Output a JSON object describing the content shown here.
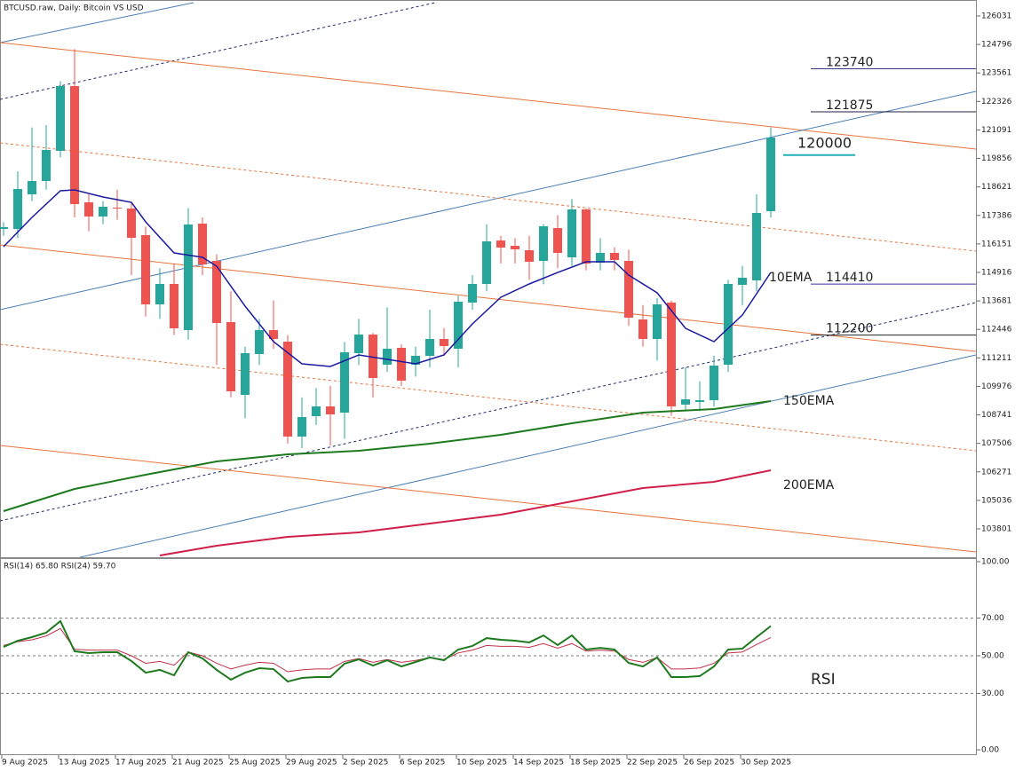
{
  "chart_data": [
    {
      "type": "candlestick",
      "title": "BTCUSD.raw, Daily:  Bitcoin VS USD",
      "categories": [
        "9 Aug 2025",
        null,
        null,
        null,
        "13 Aug 2025",
        null,
        null,
        null,
        "17 Aug 2025",
        null,
        null,
        null,
        "21 Aug 2025",
        null,
        null,
        null,
        "25 Aug 2025",
        null,
        null,
        null,
        "29 Aug 2025",
        null,
        null,
        null,
        "2 Sep 2025",
        null,
        null,
        null,
        "6 Sep 2025",
        null,
        null,
        null,
        "10 Sep 2025",
        null,
        null,
        null,
        "14 Sep 2025",
        null,
        null,
        null,
        "18 Sep 2025",
        null,
        null,
        null,
        "22 Sep 2025",
        null,
        null,
        null,
        "26 Sep 2025",
        null,
        null,
        null,
        "30 Sep 2025",
        null,
        null
      ],
      "series": [
        {
          "up_color": "#26a69a",
          "down_color": "#ef5350",
          "open": [
            116800,
            116800,
            118300,
            118877,
            120185,
            122992,
            117954,
            117339,
            117723,
            117685,
            116531,
            113531,
            114416,
            112416,
            117031,
            115416,
            112762,
            109608,
            111377,
            112416,
            111916,
            107801,
            108685,
            109108,
            108839,
            111416,
            112223,
            110916,
            111646,
            110916,
            111300,
            112031,
            111608,
            113608,
            114416,
            116300,
            116069,
            115877,
            115416,
            116839,
            115569,
            117646,
            115339,
            115762,
            115416,
            112877,
            112031,
            113608,
            109185,
            109300,
            109377,
            110916,
            114377,
            114570,
            117569
          ],
          "high": [
            117100,
            119300,
            121200,
            121300,
            123200,
            124600,
            118300,
            118000,
            118500,
            117900,
            116900,
            115100,
            115300,
            117700,
            117300,
            115700,
            114100,
            111700,
            112900,
            113700,
            112200,
            109500,
            109900,
            110000,
            111900,
            112900,
            112300,
            113400,
            111800,
            111700,
            113300,
            112500,
            113900,
            114800,
            117000,
            116500,
            116400,
            116500,
            117000,
            117400,
            118100,
            117700,
            116400,
            116000,
            115900,
            113500,
            113800,
            113700,
            110800,
            110200,
            111300,
            114600,
            115200,
            118300,
            121200
          ],
          "low": [
            116500,
            116400,
            118000,
            118500,
            119900,
            117300,
            116700,
            117000,
            117200,
            114800,
            113000,
            112900,
            112200,
            112000,
            114800,
            110900,
            109500,
            108600,
            110900,
            111600,
            107500,
            107300,
            108300,
            107400,
            107700,
            110900,
            109500,
            110600,
            110000,
            110400,
            110800,
            111300,
            110800,
            113300,
            114100,
            115300,
            115300,
            114600,
            114400,
            115100,
            115200,
            115000,
            115000,
            115000,
            112600,
            111700,
            111100,
            108700,
            108900,
            108900,
            109100,
            110600,
            113500,
            114100,
            117300
          ],
          "close": [
            116880,
            118531,
            118877,
            120223,
            122992,
            117877,
            117339,
            117762,
            117700,
            116416,
            113531,
            114416,
            112493,
            116992,
            115262,
            112723,
            109762,
            111416,
            112416,
            112031,
            107801,
            108647,
            109108,
            108762,
            111454,
            112223,
            110339,
            111608,
            110223,
            111300,
            112031,
            111723,
            113646,
            114416,
            116262,
            115993,
            115916,
            115377,
            116916,
            115762,
            117646,
            115300,
            115762,
            115454,
            112954,
            112031,
            113531,
            109108,
            109416,
            109377,
            110877,
            114416,
            114685,
            117492,
            120762
          ]
        }
      ],
      "overlays": [
        {
          "name": "10EMA",
          "color": "#1a1aa0",
          "x": [
            0,
            2,
            4,
            5,
            7,
            9,
            10,
            12,
            14,
            15,
            17,
            19,
            21,
            23,
            25,
            27,
            29,
            31,
            33,
            35,
            37,
            39,
            41,
            43,
            44,
            46,
            48,
            50,
            52,
            54
          ],
          "values": [
            116031,
            117300,
            118454,
            118493,
            118185,
            117954,
            117108,
            115762,
            115569,
            115185,
            113454,
            111916,
            110954,
            110839,
            111339,
            111146,
            110954,
            111339,
            112685,
            113839,
            114416,
            114915,
            115377,
            115377,
            114800,
            114031,
            112493,
            111916,
            113070,
            114915
          ]
        },
        {
          "name": "150EMA",
          "color": "#1e7a1e",
          "x": [
            0,
            5,
            10,
            15,
            20,
            25,
            30,
            35,
            40,
            45,
            50,
            54
          ],
          "values": [
            104570,
            105531,
            106146,
            106723,
            107031,
            107185,
            107493,
            107877,
            108377,
            108839,
            108993,
            109339
          ]
        },
        {
          "name": "200EMA",
          "color": "#d0204a",
          "x": [
            11,
            15,
            20,
            25,
            30,
            35,
            40,
            45,
            50,
            54
          ],
          "values": [
            102646,
            103070,
            103454,
            103646,
            104031,
            104416,
            104993,
            105570,
            105839,
            106339
          ]
        }
      ],
      "levels": [
        {
          "value": 123740,
          "color": "#3a3a8a"
        },
        {
          "value": 121875,
          "color": "#222244"
        },
        {
          "value": 120000,
          "color": "#20b0b8"
        },
        {
          "value": 114410,
          "color": "#3030a0"
        },
        {
          "value": 112200,
          "color": "#222222"
        }
      ],
      "ylim": [
        102570,
        126723
      ],
      "yticks": [
        126031,
        124796,
        123561,
        122326,
        121091,
        119856,
        118621,
        117386,
        116151,
        114916,
        113681,
        112446,
        111211,
        109976,
        108741,
        107506,
        106271,
        105036,
        103801
      ]
    },
    {
      "type": "line",
      "title": "RSI(14) 65.80 RSI(24) 59.70",
      "label": "RSI",
      "label_color": "#1e7a1e",
      "series": [
        {
          "color": "#1e7a1e",
          "values": [
            54.7,
            58.0,
            59.9,
            62.3,
            68.4,
            52.4,
            51.4,
            51.9,
            51.9,
            47.2,
            41.0,
            42.5,
            39.6,
            51.9,
            48.6,
            42.5,
            37.3,
            41.0,
            43.4,
            42.9,
            36.3,
            38.2,
            38.7,
            38.7,
            45.8,
            48.1,
            44.8,
            47.6,
            44.3,
            46.7,
            49.1,
            47.6,
            53.3,
            55.2,
            59.4,
            58.5,
            58.0,
            57.1,
            60.8,
            55.7,
            60.8,
            53.3,
            54.2,
            53.3,
            46.2,
            44.3,
            49.1,
            38.7,
            38.7,
            39.2,
            44.3,
            53.3,
            53.8,
            59.9,
            65.8
          ]
        },
        {
          "color": "#c0304a",
          "values": [
            55.5,
            57.5,
            58.5,
            60.5,
            64.5,
            53.5,
            53,
            53,
            53,
            50,
            46,
            47,
            45,
            52,
            50,
            46,
            43,
            45,
            46.5,
            46,
            41.5,
            42.5,
            43,
            43,
            47,
            48.5,
            46.5,
            48,
            46.5,
            47.5,
            49,
            48,
            51.5,
            53,
            55.5,
            55,
            55,
            54.5,
            56.5,
            54,
            56.5,
            52.5,
            53,
            52.5,
            48,
            46.5,
            49,
            43,
            43,
            43.5,
            46,
            51.5,
            52,
            56,
            59.7
          ]
        }
      ],
      "ylim": [
        0,
        100
      ],
      "yticks": [
        {
          "value": 100,
          "label": "100.00"
        },
        {
          "value": 70,
          "label": "70.00"
        },
        {
          "value": 50,
          "label": "50.00"
        },
        {
          "value": 30,
          "label": "30.00"
        },
        {
          "value": 0,
          "label": "0.00"
        }
      ],
      "grid": [
        70,
        50,
        30
      ]
    }
  ]
}
